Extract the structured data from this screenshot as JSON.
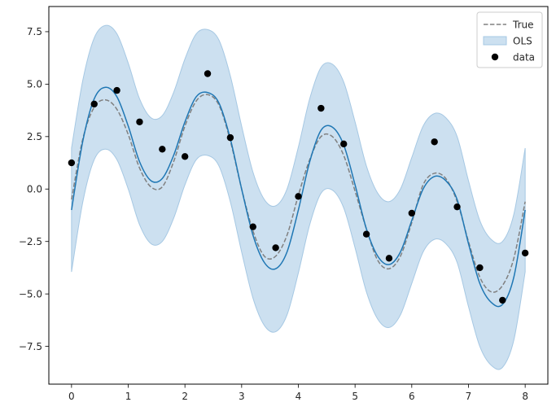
{
  "chart_data": {
    "type": "line",
    "title": "",
    "xlabel": "",
    "ylabel": "",
    "xlim": [
      -0.4,
      8.4
    ],
    "ylim": [
      -9.3,
      8.7
    ],
    "xticks": [
      0,
      1,
      2,
      3,
      4,
      5,
      6,
      7,
      8
    ],
    "yticks": [
      -7.5,
      -5.0,
      -2.5,
      0.0,
      2.5,
      5.0,
      7.5
    ],
    "ytick_labels": [
      "−7.5",
      "−5.0",
      "−2.5",
      "0.0",
      "2.5",
      "5.0",
      "7.5"
    ],
    "grid": false,
    "legend_position": "top-right",
    "legend": [
      {
        "label": "True",
        "kind": "dashed-line",
        "color": "#808080"
      },
      {
        "label": "OLS",
        "kind": "band",
        "color": "#1f77b4"
      },
      {
        "label": "data",
        "kind": "marker",
        "color": "#000000"
      }
    ],
    "colors": {
      "true": "#808080",
      "fit": "#1f77b4",
      "band": "#cce0f0",
      "band_edge": "#a6c8e3",
      "data": "#000000"
    },
    "series": [
      {
        "name": "True",
        "style": "dashed",
        "x": [
          0.0,
          0.2,
          0.4,
          0.6,
          0.8,
          1.0,
          1.2,
          1.4,
          1.6,
          1.8,
          2.0,
          2.2,
          2.4,
          2.6,
          2.8,
          3.0,
          3.2,
          3.4,
          3.6,
          3.8,
          4.0,
          4.2,
          4.4,
          4.6,
          4.8,
          5.0,
          5.2,
          5.4,
          5.6,
          5.8,
          6.0,
          6.2,
          6.4,
          6.6,
          6.8,
          7.0,
          7.2,
          7.4,
          7.6,
          7.8,
          8.0
        ],
        "y": [
          -0.5,
          2.4,
          3.9,
          4.25,
          3.8,
          2.6,
          1.0,
          0.1,
          0.1,
          1.3,
          3.0,
          4.2,
          4.5,
          4.0,
          2.3,
          0.0,
          -2.0,
          -3.2,
          -3.2,
          -2.2,
          -0.3,
          1.4,
          2.5,
          2.5,
          1.6,
          -0.1,
          -1.9,
          -3.4,
          -3.8,
          -3.2,
          -1.6,
          0.2,
          0.75,
          0.5,
          -0.6,
          -2.5,
          -4.2,
          -4.9,
          -4.6,
          -3.3,
          -0.6
        ]
      },
      {
        "name": "OLS",
        "style": "solid",
        "x": [
          0.0,
          0.2,
          0.4,
          0.6,
          0.8,
          1.0,
          1.2,
          1.4,
          1.6,
          1.8,
          2.0,
          2.2,
          2.4,
          2.6,
          2.8,
          3.0,
          3.2,
          3.4,
          3.6,
          3.8,
          4.0,
          4.2,
          4.4,
          4.6,
          4.8,
          5.0,
          5.2,
          5.4,
          5.6,
          5.8,
          6.0,
          6.2,
          6.4,
          6.6,
          6.8,
          7.0,
          7.2,
          7.4,
          7.6,
          7.8,
          8.0
        ],
        "y": [
          -1.0,
          2.3,
          4.3,
          4.85,
          4.4,
          3.0,
          1.3,
          0.4,
          0.5,
          1.6,
          3.2,
          4.4,
          4.6,
          4.1,
          2.4,
          0.0,
          -2.2,
          -3.5,
          -3.8,
          -3.0,
          -1.0,
          1.3,
          2.8,
          2.95,
          2.1,
          0.2,
          -1.9,
          -3.2,
          -3.6,
          -3.0,
          -1.5,
          0.0,
          0.6,
          0.4,
          -0.5,
          -2.6,
          -4.5,
          -5.4,
          -5.5,
          -4.2,
          -1.0
        ],
        "band_halfwidth": [
          2.95,
          2.9,
          2.9,
          2.95,
          3.0,
          3.0,
          3.0,
          3.0,
          3.0,
          3.0,
          3.0,
          3.0,
          3.0,
          3.0,
          3.0,
          3.0,
          3.0,
          3.0,
          3.0,
          3.0,
          3.0,
          3.0,
          3.0,
          3.0,
          3.0,
          3.0,
          3.0,
          3.0,
          3.0,
          3.0,
          3.0,
          3.0,
          3.0,
          3.0,
          3.0,
          3.0,
          3.0,
          3.0,
          3.0,
          3.0,
          2.95
        ]
      },
      {
        "name": "data",
        "style": "scatter",
        "x": [
          0.0,
          0.4,
          0.8,
          1.2,
          1.6,
          2.0,
          2.4,
          2.8,
          3.2,
          3.6,
          4.0,
          4.4,
          4.8,
          5.2,
          5.6,
          6.0,
          6.4,
          6.8,
          7.2,
          7.6,
          8.0
        ],
        "y": [
          1.25,
          4.05,
          4.7,
          3.2,
          1.9,
          1.55,
          5.5,
          2.45,
          -1.8,
          -2.8,
          -0.35,
          3.85,
          2.15,
          -2.15,
          -3.3,
          -1.15,
          2.25,
          -0.85,
          -3.75,
          -5.3,
          -3.05
        ]
      }
    ]
  }
}
